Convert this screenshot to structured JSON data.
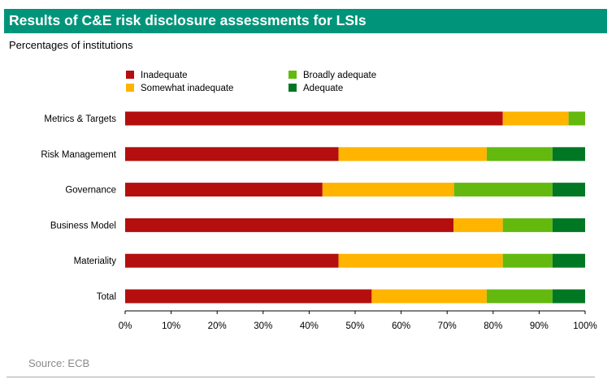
{
  "header": {
    "title": "Results of C&E risk disclosure assessments for LSIs",
    "subtitle": "Percentages of institutions"
  },
  "footer": {
    "source": "Source: ECB"
  },
  "chart_data": {
    "type": "bar",
    "orientation": "horizontal",
    "stacked": true,
    "title": "Results of C&E risk disclosure assessments for LSIs",
    "subtitle": "Percentages of institutions",
    "xlabel": "",
    "ylabel": "",
    "xlim": [
      0,
      100
    ],
    "x_ticks": [
      0,
      10,
      20,
      30,
      40,
      50,
      60,
      70,
      80,
      90,
      100
    ],
    "x_tick_labels": [
      "0%",
      "10%",
      "20%",
      "30%",
      "40%",
      "50%",
      "60%",
      "70%",
      "80%",
      "90%",
      "100%"
    ],
    "grid": false,
    "legend_position": "top",
    "categories": [
      "Metrics & Targets",
      "Risk Management",
      "Governance",
      "Business Model",
      "Materiality",
      "Total"
    ],
    "series": [
      {
        "name": "Inadequate",
        "color": "#b40e0e",
        "values": [
          82.1,
          46.4,
          42.9,
          71.4,
          46.4,
          53.6
        ]
      },
      {
        "name": "Somewhat inadequate",
        "color": "#ffb400",
        "values": [
          14.3,
          32.2,
          28.6,
          10.7,
          35.7,
          25.0
        ]
      },
      {
        "name": "Broadly adequate",
        "color": "#64b90f",
        "values": [
          3.6,
          14.3,
          21.4,
          10.8,
          10.8,
          14.3
        ]
      },
      {
        "name": "Adequate",
        "color": "#007823",
        "values": [
          0,
          7.1,
          7.1,
          7.1,
          7.1,
          7.1
        ]
      }
    ]
  }
}
